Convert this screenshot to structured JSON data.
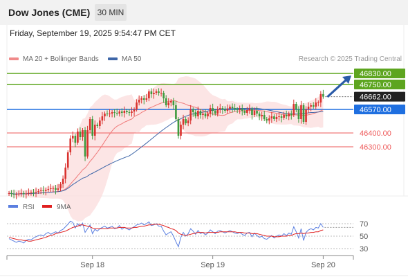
{
  "header": {
    "title": "Dow Jones (CME)",
    "timeframe": "30 MIN"
  },
  "date_line": "Friday, September 19, 2025 9:54:47 PM CET",
  "legend": {
    "ma20": "MA 20 + Bollinger Bands",
    "ma50": "MA 50"
  },
  "credit": "Research © 2025 Trading Central",
  "rsi_legend": {
    "rsi": "RSI",
    "ma9": "9MA"
  },
  "colors": {
    "up": "#d9322e",
    "down": "#3d9a3d",
    "ma20": "#f07a7a",
    "ma50": "#3e66a8",
    "band": "#fbdcdc",
    "green_level": "#5da51f",
    "blue_level": "#1f6fe0",
    "red_level": "#ee5a5a",
    "rsi": "#5b7fe0",
    "rsi_ma": "#e02020"
  },
  "chart_data": [
    {
      "type": "candlestick",
      "title": "Dow Jones (CME) 30 MIN",
      "x_ticks": [
        "Sep 18",
        "Sep 19",
        "Sep 20"
      ],
      "x_tick_index": [
        34,
        83,
        128
      ],
      "ylim": [
        45540,
        47050
      ],
      "current_price": 46662.0,
      "levels": [
        {
          "value": 46830.0,
          "label": "46830.00",
          "kind": "resistance",
          "boxed": true
        },
        {
          "value": 46750.0,
          "label": "46750.00",
          "kind": "resistance",
          "boxed": true
        },
        {
          "value": 46570.0,
          "label": "46570.00",
          "kind": "pivot",
          "boxed": true
        },
        {
          "value": 46400.0,
          "label": "46400.00",
          "kind": "support",
          "boxed": false
        },
        {
          "value": 46300.0,
          "label": "46300.00",
          "kind": "support",
          "boxed": false
        }
      ],
      "target_arrow": {
        "from_value": 46660,
        "to_value": 46815
      },
      "closes": [
        45965,
        45960,
        45955,
        45958,
        45962,
        45966,
        45960,
        45962,
        45968,
        45972,
        45970,
        45975,
        45980,
        45985,
        45982,
        45990,
        45995,
        46000,
        46002,
        45990,
        46000,
        46030,
        46070,
        46150,
        46260,
        46360,
        46380,
        46330,
        46410,
        46370,
        46420,
        46230,
        46420,
        46500,
        46380,
        46460,
        46450,
        46490,
        46520,
        46540,
        46535,
        46540,
        46550,
        46545,
        46540,
        46555,
        46545,
        46560,
        46550,
        46545,
        46555,
        46570,
        46620,
        46640,
        46650,
        46640,
        46650,
        46700,
        46680,
        46690,
        46700,
        46690,
        46690,
        46650,
        46600,
        46620,
        46630,
        46600,
        46500,
        46380,
        46460,
        46500,
        46470,
        46490,
        46570,
        46550,
        46520,
        46560,
        46530,
        46540,
        46520,
        46540,
        46580,
        46560,
        46540,
        46570,
        46580,
        46570,
        46560,
        46575,
        46590,
        46580,
        46570,
        46565,
        46575,
        46560,
        46545,
        46565,
        46575,
        46530,
        46560,
        46540,
        46520,
        46530,
        46500,
        46490,
        46505,
        46520,
        46500,
        46515,
        46520,
        46510,
        46530,
        46520,
        46540,
        46530,
        46610,
        46570,
        46500,
        46600,
        46480,
        46570,
        46590,
        46600,
        46590,
        46620,
        46620,
        46680,
        46662
      ]
    },
    {
      "type": "line",
      "title": "RSI",
      "series": [
        {
          "name": "RSI"
        },
        {
          "name": "9MA"
        }
      ],
      "yticks": [
        30,
        50,
        70
      ],
      "ylim": [
        20,
        85
      ],
      "rsi": [
        46,
        44,
        42,
        40,
        42,
        41,
        39,
        43,
        45,
        44,
        47,
        49,
        51,
        52,
        50,
        54,
        56,
        53,
        55,
        57,
        55,
        59,
        61,
        65,
        69,
        74,
        72,
        63,
        70,
        66,
        71,
        56,
        62,
        68,
        54,
        61,
        58,
        62,
        64,
        66,
        63,
        64,
        66,
        62,
        63,
        67,
        61,
        64,
        62,
        60,
        63,
        65,
        68,
        69,
        71,
        68,
        70,
        73,
        67,
        68,
        70,
        66,
        66,
        58,
        52,
        55,
        57,
        50,
        41,
        33,
        48,
        56,
        50,
        54,
        62,
        58,
        53,
        59,
        54,
        56,
        52,
        55,
        60,
        57,
        54,
        58,
        59,
        57,
        55,
        57,
        59,
        57,
        55,
        54,
        56,
        53,
        51,
        55,
        56,
        49,
        55,
        51,
        48,
        50,
        46,
        45,
        48,
        51,
        47,
        50,
        52,
        50,
        54,
        51,
        55,
        53,
        65,
        57,
        47,
        62,
        43,
        56,
        60,
        62,
        60,
        64,
        63,
        70,
        64
      ],
      "rsi_ma": [
        48,
        47,
        46,
        45,
        44,
        44,
        43,
        43,
        42,
        42,
        43,
        44,
        45,
        46,
        47,
        48,
        50,
        51,
        52,
        54,
        55,
        56,
        57,
        58,
        60,
        62,
        64,
        65,
        66,
        68,
        68,
        67,
        66,
        65,
        63,
        62,
        62,
        62,
        62,
        62,
        62,
        63,
        63,
        63,
        63,
        64,
        64,
        64,
        63,
        63,
        63,
        64,
        64,
        65,
        66,
        66,
        67,
        68,
        68,
        69,
        69,
        69,
        68,
        67,
        65,
        64,
        62,
        61,
        59,
        55,
        53,
        52,
        51,
        52,
        53,
        54,
        55,
        56,
        56,
        56,
        55,
        56,
        56,
        56,
        56,
        56,
        57,
        57,
        57,
        57,
        57,
        57,
        57,
        56,
        56,
        56,
        55,
        55,
        55,
        54,
        54,
        54,
        53,
        52,
        51,
        50,
        50,
        50,
        49,
        49,
        49,
        50,
        50,
        50,
        51,
        51,
        53,
        54,
        54,
        55,
        54,
        55,
        55,
        56,
        56,
        57,
        57,
        59,
        60
      ]
    }
  ]
}
